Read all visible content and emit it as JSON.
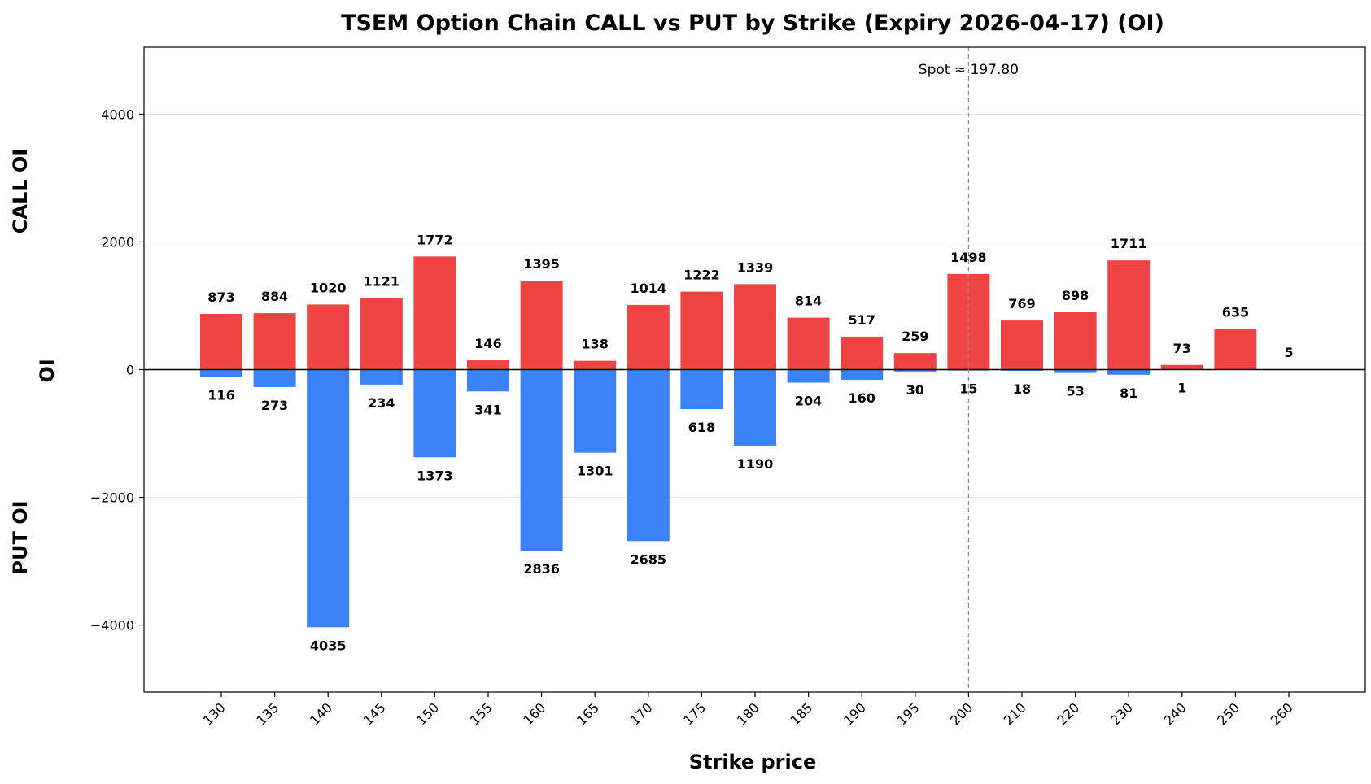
{
  "chart_data": {
    "type": "bar",
    "title": "TSEM Option Chain CALL vs PUT by Strike (Expiry 2026-04-17) (OI)",
    "xlabel": "Strike price",
    "ylabel": "OI",
    "upper_label": "CALL OI",
    "lower_label": "PUT OI",
    "categories": [
      "130",
      "135",
      "140",
      "145",
      "150",
      "155",
      "160",
      "165",
      "170",
      "175",
      "180",
      "185",
      "190",
      "195",
      "200",
      "210",
      "220",
      "230",
      "240",
      "250",
      "260"
    ],
    "series": [
      {
        "name": "CALL",
        "color": "#ef4444",
        "values": [
          873,
          884,
          1020,
          1121,
          1772,
          146,
          1395,
          138,
          1014,
          1222,
          1339,
          814,
          517,
          259,
          1498,
          769,
          898,
          1711,
          73,
          635,
          5
        ]
      },
      {
        "name": "PUT",
        "color": "#3b82f6",
        "values": [
          116,
          273,
          4035,
          234,
          1373,
          341,
          2836,
          1301,
          2685,
          618,
          1190,
          204,
          160,
          30,
          15,
          18,
          53,
          81,
          1,
          0,
          0
        ]
      }
    ],
    "put_labels": [
      "116",
      "273",
      "4035",
      "234",
      "1373",
      "341",
      "2836",
      "1301",
      "2685",
      "618",
      "1190",
      "204",
      "160",
      "30",
      "15",
      "18",
      "53",
      "81",
      "1",
      "",
      ""
    ],
    "ylim": [
      -5050,
      5050
    ],
    "yticks": [
      -4000,
      -2000,
      0,
      2000,
      4000
    ],
    "ytick_labels": [
      "−4000",
      "−2000",
      "0",
      "2000",
      "4000"
    ],
    "grid": true,
    "spot": {
      "label": "Spot ≈ 197.80",
      "category": "200"
    }
  }
}
